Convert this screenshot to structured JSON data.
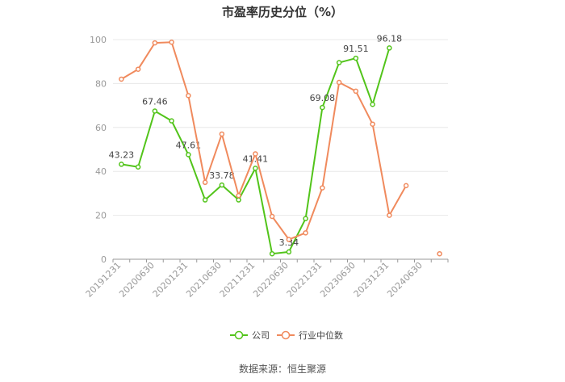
{
  "chart_data": {
    "type": "line",
    "title": "市盈率历史分位（%）",
    "source": "数据来源：恒生聚源",
    "xlabel": "",
    "ylabel": "",
    "ylim": [
      0,
      100
    ],
    "yticks": [
      0,
      20,
      40,
      60,
      80,
      100
    ],
    "grid": true,
    "legend_position": "bottom",
    "x_tick_labels": [
      "20191231",
      "20200630",
      "20201231",
      "20210630",
      "20211231",
      "20220630",
      "20221231",
      "20230630",
      "20231231",
      "20240630"
    ],
    "x_count": 20,
    "series": [
      {
        "name": "公司",
        "color": "#52c41a",
        "values": [
          43.23,
          42,
          67.46,
          63,
          47.61,
          27,
          33.78,
          27,
          41.41,
          2.5,
          3.34,
          18.5,
          69.08,
          89.5,
          91.51,
          70.5,
          96.18,
          null,
          null,
          null
        ],
        "labels": {
          "0": "43.23",
          "2": "67.46",
          "4": "47.61",
          "6": "33.78",
          "8": "41.41",
          "10": "3.34",
          "12": "69.08",
          "14": "91.51",
          "16": "96.18"
        }
      },
      {
        "name": "行业中位数",
        "color": "#f08a5d",
        "values": [
          82,
          86.5,
          98.5,
          98.8,
          74.5,
          35,
          57,
          29,
          48,
          19.5,
          9,
          12,
          32.5,
          80.5,
          76.5,
          61.5,
          20,
          33.5,
          null,
          2.5
        ]
      }
    ]
  }
}
